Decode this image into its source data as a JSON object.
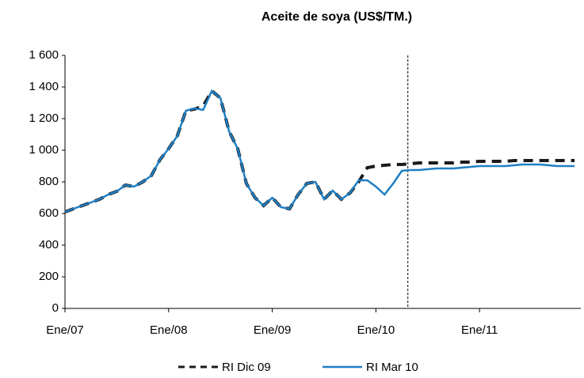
{
  "chart_data": {
    "type": "line",
    "title": "Aceite de soya (US$/TM.)",
    "categories": [
      "Ene/07",
      null,
      null,
      null,
      null,
      null,
      null,
      null,
      null,
      null,
      null,
      null,
      "Ene/08",
      null,
      null,
      null,
      null,
      null,
      null,
      null,
      null,
      null,
      null,
      null,
      "Ene/09",
      null,
      null,
      null,
      null,
      null,
      null,
      null,
      null,
      null,
      null,
      null,
      "Ene/10",
      null,
      null,
      null,
      null,
      null,
      null,
      null,
      null,
      null,
      null,
      null,
      "Ene/11",
      null,
      null,
      null,
      null,
      null,
      null,
      null,
      null,
      null,
      null,
      null
    ],
    "series": [
      {
        "name": "RI Dic 09",
        "color": "#1a1a1a",
        "dashed": true,
        "values": [
          610,
          630,
          650,
          670,
          690,
          720,
          740,
          780,
          770,
          800,
          840,
          940,
          1010,
          1090,
          1250,
          1260,
          1280,
          1375,
          1330,
          1120,
          1010,
          790,
          700,
          650,
          700,
          640,
          630,
          720,
          790,
          800,
          690,
          745,
          690,
          730,
          800,
          890,
          900,
          905,
          910,
          910,
          915,
          920,
          920,
          920,
          920,
          920,
          925,
          925,
          930,
          930,
          930,
          930,
          935,
          935,
          935,
          935,
          935,
          935,
          935,
          935
        ]
      },
      {
        "name": "RI Mar 10",
        "color": "#1f7fc4",
        "dashed": false,
        "values": [
          610,
          630,
          650,
          670,
          690,
          720,
          740,
          780,
          770,
          800,
          840,
          940,
          1010,
          1090,
          1250,
          1265,
          1255,
          1375,
          1330,
          1120,
          1010,
          790,
          700,
          650,
          700,
          640,
          630,
          720,
          790,
          800,
          690,
          745,
          690,
          730,
          810,
          810,
          770,
          720,
          790,
          870,
          875,
          875,
          880,
          885,
          885,
          885,
          890,
          895,
          900,
          900,
          900,
          900,
          905,
          910,
          910,
          910,
          905,
          900,
          900,
          900
        ]
      }
    ],
    "vertical_line": 39.7,
    "ylim": [
      0,
      1600
    ],
    "yticks": [
      0,
      200,
      400,
      600,
      800,
      {
        "value": 1000,
        "label": "1 000"
      },
      {
        "value": 1200,
        "label": "1 200"
      },
      {
        "value": 1400,
        "label": "1 400"
      },
      {
        "value": 1600,
        "label": "1 600"
      }
    ]
  }
}
